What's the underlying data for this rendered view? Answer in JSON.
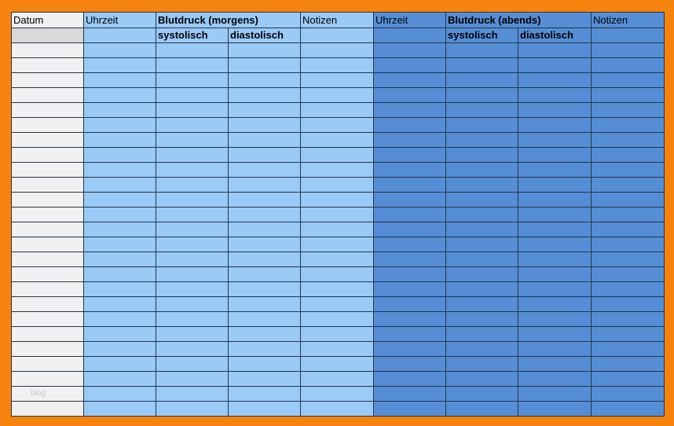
{
  "header": {
    "datum": "Datum",
    "morning": {
      "uhrzeit": "Uhrzeit",
      "title": "Blutdruck (morgens)",
      "systolisch": "systolisch",
      "diastolisch": "diastolisch",
      "notizen": "Notizen"
    },
    "evening": {
      "uhrzeit": "Uhrzeit",
      "title": "Blutdruck (abends)",
      "systolisch": "systolisch",
      "diastolisch": "diastolisch",
      "notizen": "Notizen"
    }
  },
  "watermark": "blog"
}
